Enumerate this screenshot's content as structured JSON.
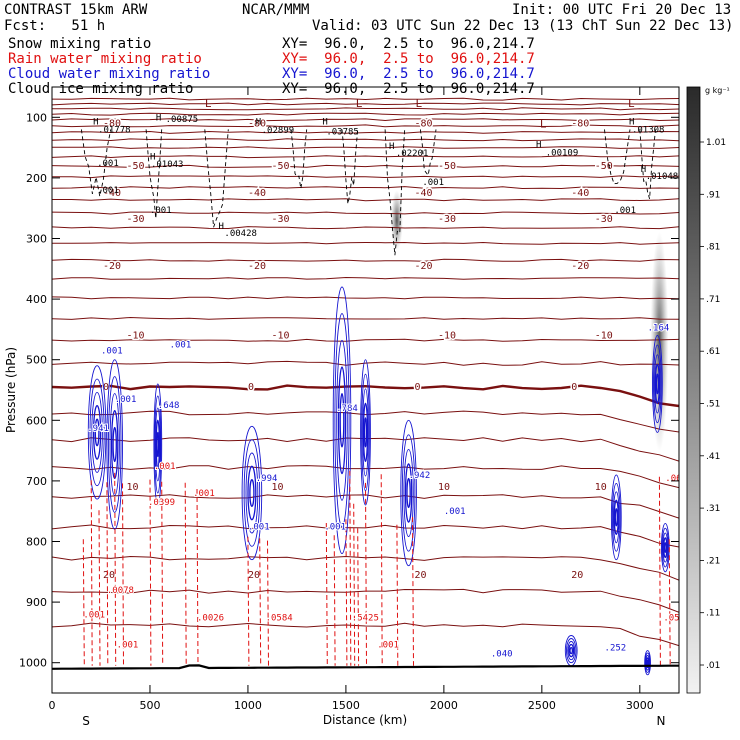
{
  "header": {
    "model": "CONTRAST 15km ARW",
    "fcst": "Fcst:   51 h",
    "center": "NCAR/MMM",
    "init": "Init: 00 UTC Fri 20 Dec 13",
    "valid": "Valid: 03 UTC Sun 22 Dec 13 (13 ChT Sun 22 Dec 13)"
  },
  "fields": [
    {
      "name": "Snow mixing ratio",
      "xy": "XY=  96.0,  2.5 to  96.0,214.7",
      "color": "#000000"
    },
    {
      "name": "Rain water mixing ratio",
      "xy": "XY=  96.0,  2.5 to  96.0,214.7",
      "color": "#e01010"
    },
    {
      "name": "Cloud water mixing ratio",
      "xy": "XY=  96.0,  2.5 to  96.0,214.7",
      "color": "#1515d0"
    },
    {
      "name": "Cloud ice mixing ratio",
      "xy": "XY=  96.0,  2.5 to  96.0,214.7",
      "color": "#000000"
    }
  ],
  "chart_data": {
    "type": "cross-section contour",
    "xlabel": "Distance (km)",
    "ylabel": "Pressure (hPa)",
    "xlim": [
      0,
      3200
    ],
    "ylim": [
      1050,
      50
    ],
    "x_ticks": [
      "0",
      "500",
      "1000",
      "1500",
      "2000",
      "2500",
      "3000"
    ],
    "y_ticks": [
      "100",
      "200",
      "300",
      "400",
      "500",
      "600",
      "700",
      "800",
      "900",
      "1000"
    ],
    "left_end_label": "S",
    "right_end_label": "N",
    "colorbar": {
      "unit": "g kg⁻¹",
      "labels": [
        "1.01",
        ".91",
        ".81",
        ".71",
        ".61",
        ".51",
        ".41",
        ".31",
        ".21",
        ".11",
        ".01"
      ],
      "values": [
        1.01,
        0.91,
        0.81,
        0.71,
        0.61,
        0.51,
        0.41,
        0.31,
        0.21,
        0.11,
        0.01
      ]
    },
    "temperature_contours": [
      {
        "label": "-80",
        "p": 110
      },
      {
        "label": "-50",
        "p": 180
      },
      {
        "label": "-40",
        "p": 225
      },
      {
        "label": "-30",
        "p": 268
      },
      {
        "label": "-20",
        "p": 345
      },
      {
        "label": "-10",
        "p": 460
      },
      {
        "label": "0",
        "p": 545
      },
      {
        "label": "10",
        "p": 710
      },
      {
        "label": "20",
        "p": 855
      }
    ],
    "snow_labels": [
      {
        "x": 210,
        "p": 112,
        "text": "H"
      },
      {
        "x": 235,
        "p": 125,
        "text": ".01778"
      },
      {
        "x": 530,
        "p": 105,
        "text": "H"
      },
      {
        "x": 580,
        "p": 108,
        "text": ".00875"
      },
      {
        "x": 1040,
        "p": 112,
        "text": "H"
      },
      {
        "x": 1070,
        "p": 126,
        "text": ".02899"
      },
      {
        "x": 1380,
        "p": 112,
        "text": "H"
      },
      {
        "x": 1400,
        "p": 128,
        "text": ".03785"
      },
      {
        "x": 1720,
        "p": 152,
        "text": "H"
      },
      {
        "x": 1755,
        "p": 164,
        "text": ".02201"
      },
      {
        "x": 2470,
        "p": 150,
        "text": "H"
      },
      {
        "x": 2520,
        "p": 163,
        "text": ".00109"
      },
      {
        "x": 2945,
        "p": 112,
        "text": "H"
      },
      {
        "x": 2960,
        "p": 125,
        "text": ".01308"
      },
      {
        "x": 3005,
        "p": 190,
        "text": "H"
      },
      {
        "x": 3030,
        "p": 202,
        "text": ".01048"
      },
      {
        "x": 500,
        "p": 170,
        "text": "H"
      },
      {
        "x": 505,
        "p": 182,
        "text": ".01043"
      },
      {
        "x": 850,
        "p": 284,
        "text": "H"
      },
      {
        "x": 880,
        "p": 296,
        "text": ".00428"
      }
    ],
    "ice_labels": [
      {
        "x": 230,
        "p": 180,
        "text": ".001"
      },
      {
        "x": 230,
        "p": 225,
        "text": ".001"
      },
      {
        "x": 500,
        "p": 258,
        "text": ".001"
      },
      {
        "x": 1890,
        "p": 212,
        "text": ".001"
      },
      {
        "x": 2870,
        "p": 258,
        "text": ".001"
      }
    ],
    "cloud_water_labels": [
      {
        "x": 250,
        "p": 490,
        "text": ".001"
      },
      {
        "x": 320,
        "p": 570,
        "text": ".001"
      },
      {
        "x": 600,
        "p": 480,
        "text": ".001"
      },
      {
        "x": 540,
        "p": 580,
        "text": ".648"
      },
      {
        "x": 180,
        "p": 618,
        "text": ".941"
      },
      {
        "x": 1450,
        "p": 585,
        "text": ".784"
      },
      {
        "x": 1040,
        "p": 700,
        "text": ".994"
      },
      {
        "x": 1820,
        "p": 695,
        "text": ".942"
      },
      {
        "x": 3040,
        "p": 452,
        "text": ".164"
      },
      {
        "x": 2240,
        "p": 990,
        "text": ".040"
      },
      {
        "x": 2820,
        "p": 980,
        "text": ".252"
      },
      {
        "x": 1000,
        "p": 780,
        "text": ".001"
      },
      {
        "x": 1390,
        "p": 780,
        "text": ".001"
      },
      {
        "x": 2000,
        "p": 755,
        "text": ".001"
      }
    ],
    "rain_labels": [
      {
        "x": 490,
        "p": 740,
        "text": ".0399"
      },
      {
        "x": 280,
        "p": 885,
        "text": ".0078"
      },
      {
        "x": 740,
        "p": 930,
        "text": ".0026"
      },
      {
        "x": 1090,
        "p": 930,
        "text": ".0584"
      },
      {
        "x": 1530,
        "p": 930,
        "text": ".5425"
      },
      {
        "x": 160,
        "p": 925,
        "text": ".001"
      },
      {
        "x": 330,
        "p": 975,
        "text": ".001"
      },
      {
        "x": 1660,
        "p": 975,
        "text": ".001"
      },
      {
        "x": 3130,
        "p": 700,
        "text": ".063"
      },
      {
        "x": 3120,
        "p": 930,
        "text": ".050"
      },
      {
        "x": 720,
        "p": 725,
        "text": ".001"
      },
      {
        "x": 520,
        "p": 680,
        "text": ".001"
      }
    ],
    "lows": [
      {
        "x": 780,
        "p": 83
      },
      {
        "x": 1550,
        "p": 83
      },
      {
        "x": 1855,
        "p": 83
      },
      {
        "x": 2940,
        "p": 83
      },
      {
        "x": 2490,
        "p": 117
      }
    ]
  }
}
